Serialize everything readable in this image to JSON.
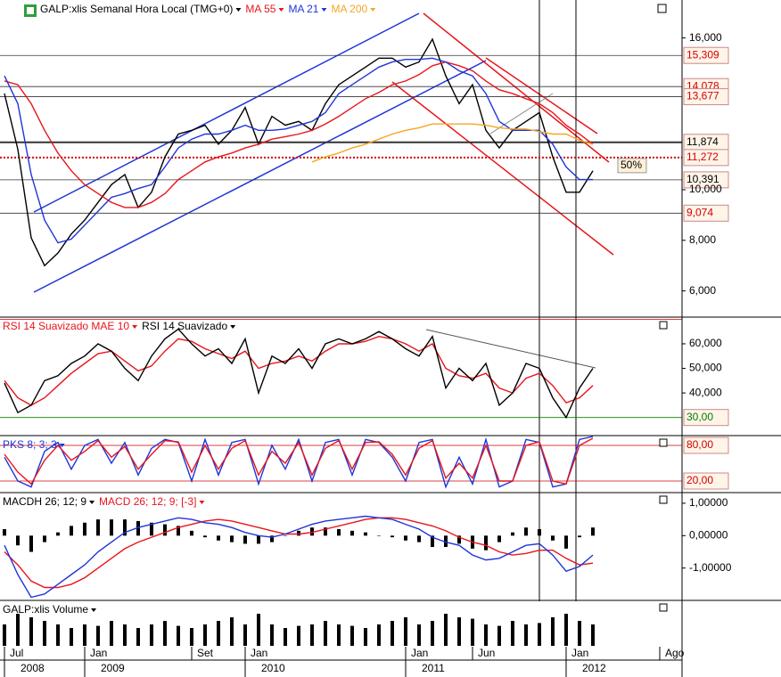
{
  "chart_data": [
    {
      "type": "line",
      "title": "GALP:xlis Semanal Hora Local (TMG+0)",
      "categories": [
        "Jul",
        null,
        null,
        null,
        null,
        null,
        "Jan",
        null,
        null,
        null,
        null,
        null,
        null,
        null,
        "Set",
        null,
        null,
        null,
        "Jan",
        null,
        null,
        null,
        null,
        null,
        null,
        null,
        null,
        null,
        null,
        null,
        "Jan",
        null,
        null,
        null,
        null,
        "Jun",
        null,
        null,
        null,
        null,
        null,
        null,
        "Jan",
        null,
        null,
        null,
        null,
        null,
        null,
        "Ago"
      ],
      "year_labels": [
        "2008",
        null,
        null,
        null,
        null,
        null,
        "2009",
        null,
        null,
        null,
        null,
        null,
        null,
        null,
        null,
        null,
        null,
        null,
        "2010",
        null,
        null,
        null,
        null,
        null,
        null,
        null,
        null,
        null,
        null,
        null,
        "2011",
        null,
        null,
        null,
        null,
        null,
        null,
        null,
        null,
        null,
        null,
        null,
        "2012",
        null,
        null,
        null,
        null,
        null,
        null,
        null
      ],
      "series": [
        {
          "color": "#000000",
          "values": [
            13800,
            11600,
            8100,
            7000,
            7500,
            8250,
            8800,
            9500,
            10200,
            10600,
            9300,
            9900,
            11300,
            12200,
            12350,
            12550,
            11800,
            12350,
            13250,
            11800,
            12900,
            12550,
            12700,
            12350,
            13400,
            14150,
            14500,
            14850,
            15200,
            15200,
            14850,
            15050,
            15950,
            14500,
            13400,
            14150,
            12350,
            11650,
            12350,
            12700,
            13050,
            11300,
            9900,
            9900,
            10750,
            null,
            null,
            null,
            null,
            null
          ]
        },
        {
          "name": "MA 55",
          "color": "#e8151b",
          "values": [
            14300,
            14150,
            13400,
            12350,
            11450,
            10750,
            10200,
            9850,
            9500,
            9300,
            9300,
            9500,
            9850,
            10400,
            10750,
            11100,
            11300,
            11450,
            11650,
            11800,
            12000,
            12100,
            12200,
            12350,
            12600,
            12900,
            13250,
            13600,
            13850,
            14150,
            14300,
            14550,
            14900,
            15050,
            14900,
            14700,
            14300,
            13950,
            13800,
            13600,
            13400,
            13050,
            12550,
            12200,
            11800,
            null,
            null,
            null,
            null,
            null
          ]
        },
        {
          "name": "MA 21",
          "color": "#1f35d8",
          "values": [
            14500,
            13400,
            10600,
            8800,
            7900,
            8050,
            8600,
            9150,
            9700,
            9850,
            10050,
            10200,
            10900,
            11650,
            12000,
            12200,
            12200,
            12350,
            12550,
            12350,
            12350,
            12400,
            12550,
            12700,
            13050,
            13800,
            14150,
            14500,
            14850,
            15050,
            15150,
            15150,
            15200,
            15050,
            14700,
            14500,
            13800,
            12700,
            12350,
            12350,
            12350,
            11800,
            10900,
            10400,
            10400,
            null,
            null,
            null,
            null,
            null
          ]
        },
        {
          "name": "MA 200",
          "color": "#f5a623",
          "values": [
            null,
            null,
            null,
            null,
            null,
            null,
            null,
            null,
            null,
            null,
            null,
            null,
            null,
            null,
            null,
            null,
            null,
            null,
            null,
            null,
            null,
            null,
            null,
            11100,
            11300,
            11450,
            11650,
            11800,
            12000,
            12200,
            12350,
            12450,
            12600,
            12600,
            12600,
            12600,
            12550,
            12450,
            12400,
            12400,
            12300,
            12200,
            12200,
            11950,
            11800,
            null,
            null,
            null,
            null,
            null
          ]
        }
      ],
      "ylim": [
        5000,
        17500
      ],
      "yticks": [
        {
          "value": 6000,
          "label": "6,000"
        },
        {
          "value": 8000,
          "label": "8,000"
        },
        {
          "value": 10000,
          "label": "10,000"
        },
        {
          "value": 16000,
          "label": "16,000"
        }
      ],
      "levels": [
        {
          "value": 15309,
          "label": "15,309",
          "color": "#d00000",
          "style": "solid"
        },
        {
          "value": 14078,
          "label": "14,078",
          "color": "#d00000",
          "style": "solid"
        },
        {
          "value": 13677,
          "label": "13,677",
          "color": "#d00000",
          "style": "solid"
        },
        {
          "value": 11874,
          "label": "11,874",
          "color": "#000000",
          "style": "bold"
        },
        {
          "value": 11272,
          "label": "11,272",
          "color": "#d00000",
          "style": "dotted"
        },
        {
          "value": 10391,
          "label": "10,391",
          "color": "#000000",
          "style": "solid"
        },
        {
          "value": 9074,
          "label": "9,074",
          "color": "#d00000",
          "style": "solid"
        }
      ],
      "annotation": "50%"
    },
    {
      "type": "line",
      "series": [
        {
          "name": "RSI 14 Suavizado MAE 10",
          "color": "#e8151b",
          "values": [
            45,
            38,
            35,
            38,
            43,
            48,
            52,
            56,
            57,
            53,
            49,
            51,
            57,
            62,
            61,
            58,
            56,
            54,
            57,
            50,
            52,
            53,
            55,
            53,
            57,
            60,
            60,
            61,
            63,
            62,
            60,
            57,
            60,
            50,
            47,
            46,
            48,
            42,
            40,
            46,
            48,
            43,
            36,
            38,
            43,
            null,
            null,
            null,
            null,
            null
          ]
        },
        {
          "name": "RSI 14 Suavizado",
          "color": "#000000",
          "values": [
            44,
            32,
            35,
            45,
            47,
            52,
            55,
            60,
            57,
            50,
            45,
            55,
            62,
            66,
            60,
            55,
            58,
            52,
            62,
            40,
            55,
            52,
            58,
            50,
            60,
            62,
            60,
            62,
            65,
            62,
            58,
            55,
            63,
            42,
            50,
            45,
            52,
            35,
            40,
            52,
            50,
            38,
            30,
            42,
            50,
            null,
            null,
            null,
            null,
            null
          ]
        }
      ],
      "ylim": [
        23,
        70.5
      ],
      "yticks": [
        {
          "value": 40,
          "label": "40,000"
        },
        {
          "value": 50,
          "label": "50,000"
        },
        {
          "value": 60,
          "label": "60,000"
        }
      ],
      "levels": [
        {
          "value": 70,
          "color": "#d00000",
          "style": "solid"
        },
        {
          "value": 30,
          "label": "30,00",
          "color": "#008000",
          "style": "solid"
        }
      ]
    },
    {
      "type": "line",
      "series": [
        {
          "name": "PKS 8; 3; 3",
          "color": "#1f35d8",
          "values": [
            60,
            20,
            10,
            70,
            85,
            40,
            80,
            90,
            50,
            85,
            30,
            75,
            90,
            85,
            20,
            90,
            30,
            85,
            90,
            15,
            80,
            40,
            90,
            20,
            85,
            90,
            30,
            90,
            85,
            60,
            20,
            85,
            90,
            10,
            60,
            15,
            90,
            10,
            20,
            90,
            85,
            10,
            15,
            90,
            95,
            null,
            null,
            null,
            null,
            null
          ]
        },
        {
          "color": "#e8151b",
          "values": [
            65,
            35,
            15,
            55,
            80,
            55,
            70,
            88,
            60,
            78,
            40,
            65,
            88,
            86,
            35,
            80,
            40,
            75,
            88,
            30,
            70,
            50,
            85,
            30,
            75,
            88,
            40,
            85,
            86,
            65,
            30,
            75,
            88,
            25,
            50,
            25,
            80,
            20,
            20,
            80,
            86,
            20,
            15,
            80,
            92,
            null,
            null,
            null,
            null,
            null
          ]
        }
      ],
      "ylim": [
        2,
        95
      ],
      "levels": [
        {
          "value": 80,
          "label": "80,00",
          "color": "#d00000",
          "style": "solid"
        },
        {
          "value": 20,
          "label": "20,00",
          "color": "#d00000",
          "style": "solid"
        }
      ]
    },
    {
      "type": "combo",
      "series": [
        {
          "name": "MACDH 26; 12; 9",
          "color": "#000000",
          "kind": "bar",
          "values": [
            0.2,
            -0.3,
            -0.5,
            -0.2,
            0.1,
            0.3,
            0.4,
            0.5,
            0.5,
            0.5,
            0.45,
            0.4,
            0.35,
            0.3,
            0.15,
            -0.05,
            -0.15,
            -0.2,
            -0.25,
            -0.25,
            -0.2,
            0.0,
            0.15,
            0.25,
            0.25,
            0.2,
            0.15,
            0.1,
            0.0,
            -0.05,
            -0.15,
            -0.2,
            -0.35,
            -0.35,
            -0.25,
            -0.4,
            -0.45,
            -0.2,
            0.1,
            0.25,
            0.2,
            -0.15,
            -0.4,
            -0.05,
            0.25,
            null,
            null,
            null,
            null,
            null
          ]
        },
        {
          "name": "MACD 26; 12; 9; [-3]",
          "color": "#e8151b",
          "kind": "line",
          "values": [
            -0.5,
            -0.9,
            -1.4,
            -1.6,
            -1.6,
            -1.5,
            -1.3,
            -1.0,
            -0.7,
            -0.4,
            -0.2,
            -0.05,
            0.1,
            0.25,
            0.35,
            0.45,
            0.5,
            0.45,
            0.35,
            0.25,
            0.15,
            0.05,
            0.05,
            0.1,
            0.2,
            0.3,
            0.4,
            0.5,
            0.55,
            0.55,
            0.5,
            0.4,
            0.3,
            0.15,
            -0.05,
            -0.2,
            -0.3,
            -0.5,
            -0.6,
            -0.55,
            -0.45,
            -0.45,
            -0.7,
            -0.9,
            -0.85,
            null,
            null,
            null,
            null,
            null
          ]
        },
        {
          "color": "#1f35d8",
          "kind": "line",
          "values": [
            -0.3,
            -1.2,
            -1.9,
            -1.8,
            -1.5,
            -1.2,
            -0.9,
            -0.5,
            -0.2,
            0.1,
            0.25,
            0.35,
            0.45,
            0.55,
            0.5,
            0.4,
            0.35,
            0.25,
            0.1,
            0.0,
            -0.05,
            0.05,
            0.2,
            0.35,
            0.45,
            0.5,
            0.55,
            0.6,
            0.55,
            0.5,
            0.35,
            0.2,
            -0.05,
            -0.2,
            -0.3,
            -0.6,
            -0.75,
            -0.7,
            -0.5,
            -0.3,
            -0.25,
            -0.6,
            -1.1,
            -0.95,
            -0.6,
            null,
            null,
            null,
            null,
            null
          ]
        }
      ],
      "ylim": [
        -1.97,
        1.3
      ],
      "yticks": [
        {
          "value": 1,
          "label": "1,00000"
        },
        {
          "value": 0,
          "label": "0,00000"
        },
        {
          "value": -1,
          "label": "-1,00000"
        }
      ]
    },
    {
      "type": "bar",
      "title": "GALP:xlis Volume",
      "color": "#000000",
      "values": [
        30,
        45,
        40,
        35,
        30,
        25,
        30,
        28,
        35,
        30,
        25,
        30,
        35,
        28,
        25,
        30,
        35,
        40,
        30,
        45,
        30,
        25,
        28,
        30,
        35,
        30,
        28,
        25,
        30,
        35,
        40,
        30,
        35,
        45,
        40,
        38,
        30,
        28,
        35,
        30,
        32,
        40,
        45,
        35,
        30,
        null,
        null,
        null,
        null,
        null
      ]
    }
  ]
}
